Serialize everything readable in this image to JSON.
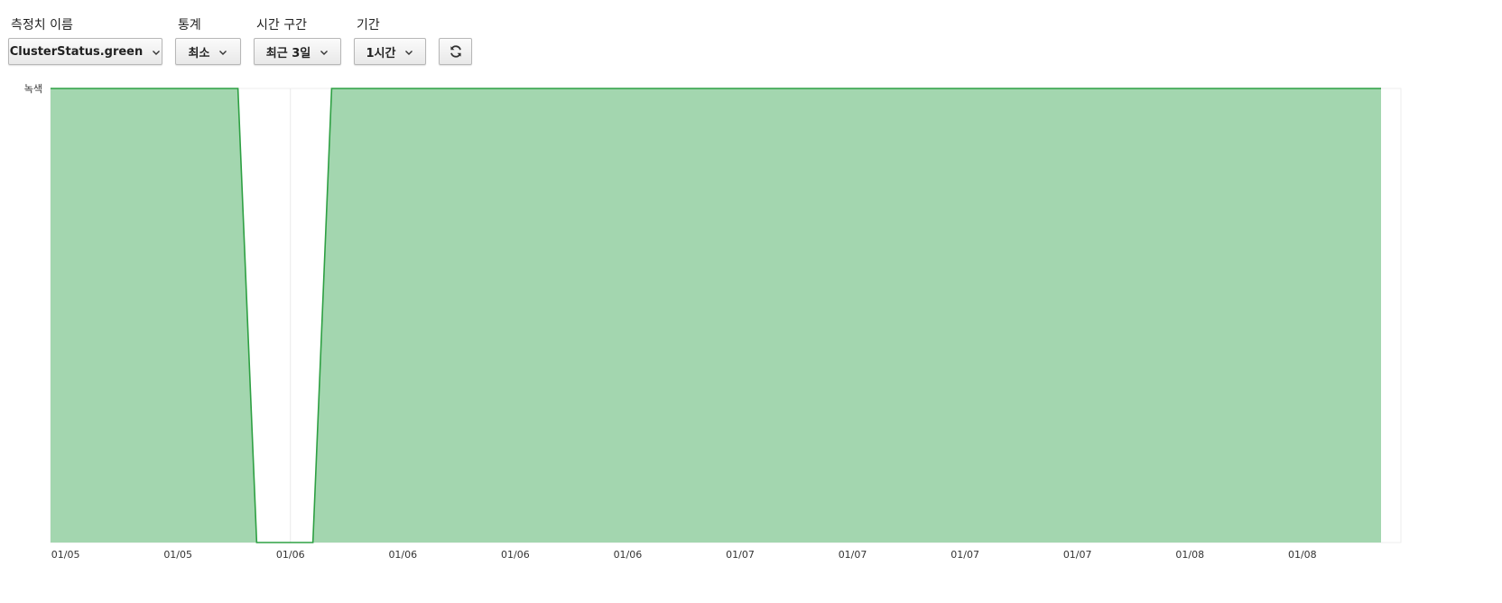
{
  "controls": {
    "metric": {
      "label": "측정치 이름",
      "value": "ClusterStatus.green"
    },
    "statistic": {
      "label": "통계",
      "value": "최소"
    },
    "time_range": {
      "label": "시간 구간",
      "value": "최근 3일"
    },
    "period": {
      "label": "기간",
      "value": "1시간"
    },
    "refresh_icon": "refresh-icon"
  },
  "chart_data": {
    "type": "area",
    "title": "",
    "xlabel": "",
    "ylabel": "",
    "y_tick_labels": [
      "녹색"
    ],
    "ylim": [
      0,
      1
    ],
    "x_tick_labels": [
      "01/05",
      "01/05",
      "01/06",
      "01/06",
      "01/06",
      "01/06",
      "01/07",
      "01/07",
      "01/07",
      "01/07",
      "01/08",
      "01/08"
    ],
    "x_hours": [
      0,
      71
    ],
    "x_tick_hours": [
      0.8,
      6.8,
      12.8,
      18.8,
      24.8,
      30.8,
      36.8,
      42.8,
      48.8,
      54.8,
      60.8,
      66.8
    ],
    "series": [
      {
        "x": [
          0,
          10,
          11,
          14,
          15,
          71
        ],
        "values": [
          1,
          1,
          0,
          0,
          1,
          1
        ]
      }
    ],
    "line_color": "#2ea043",
    "fill_color": "#a3d6af",
    "grid": true,
    "legend": "none"
  }
}
